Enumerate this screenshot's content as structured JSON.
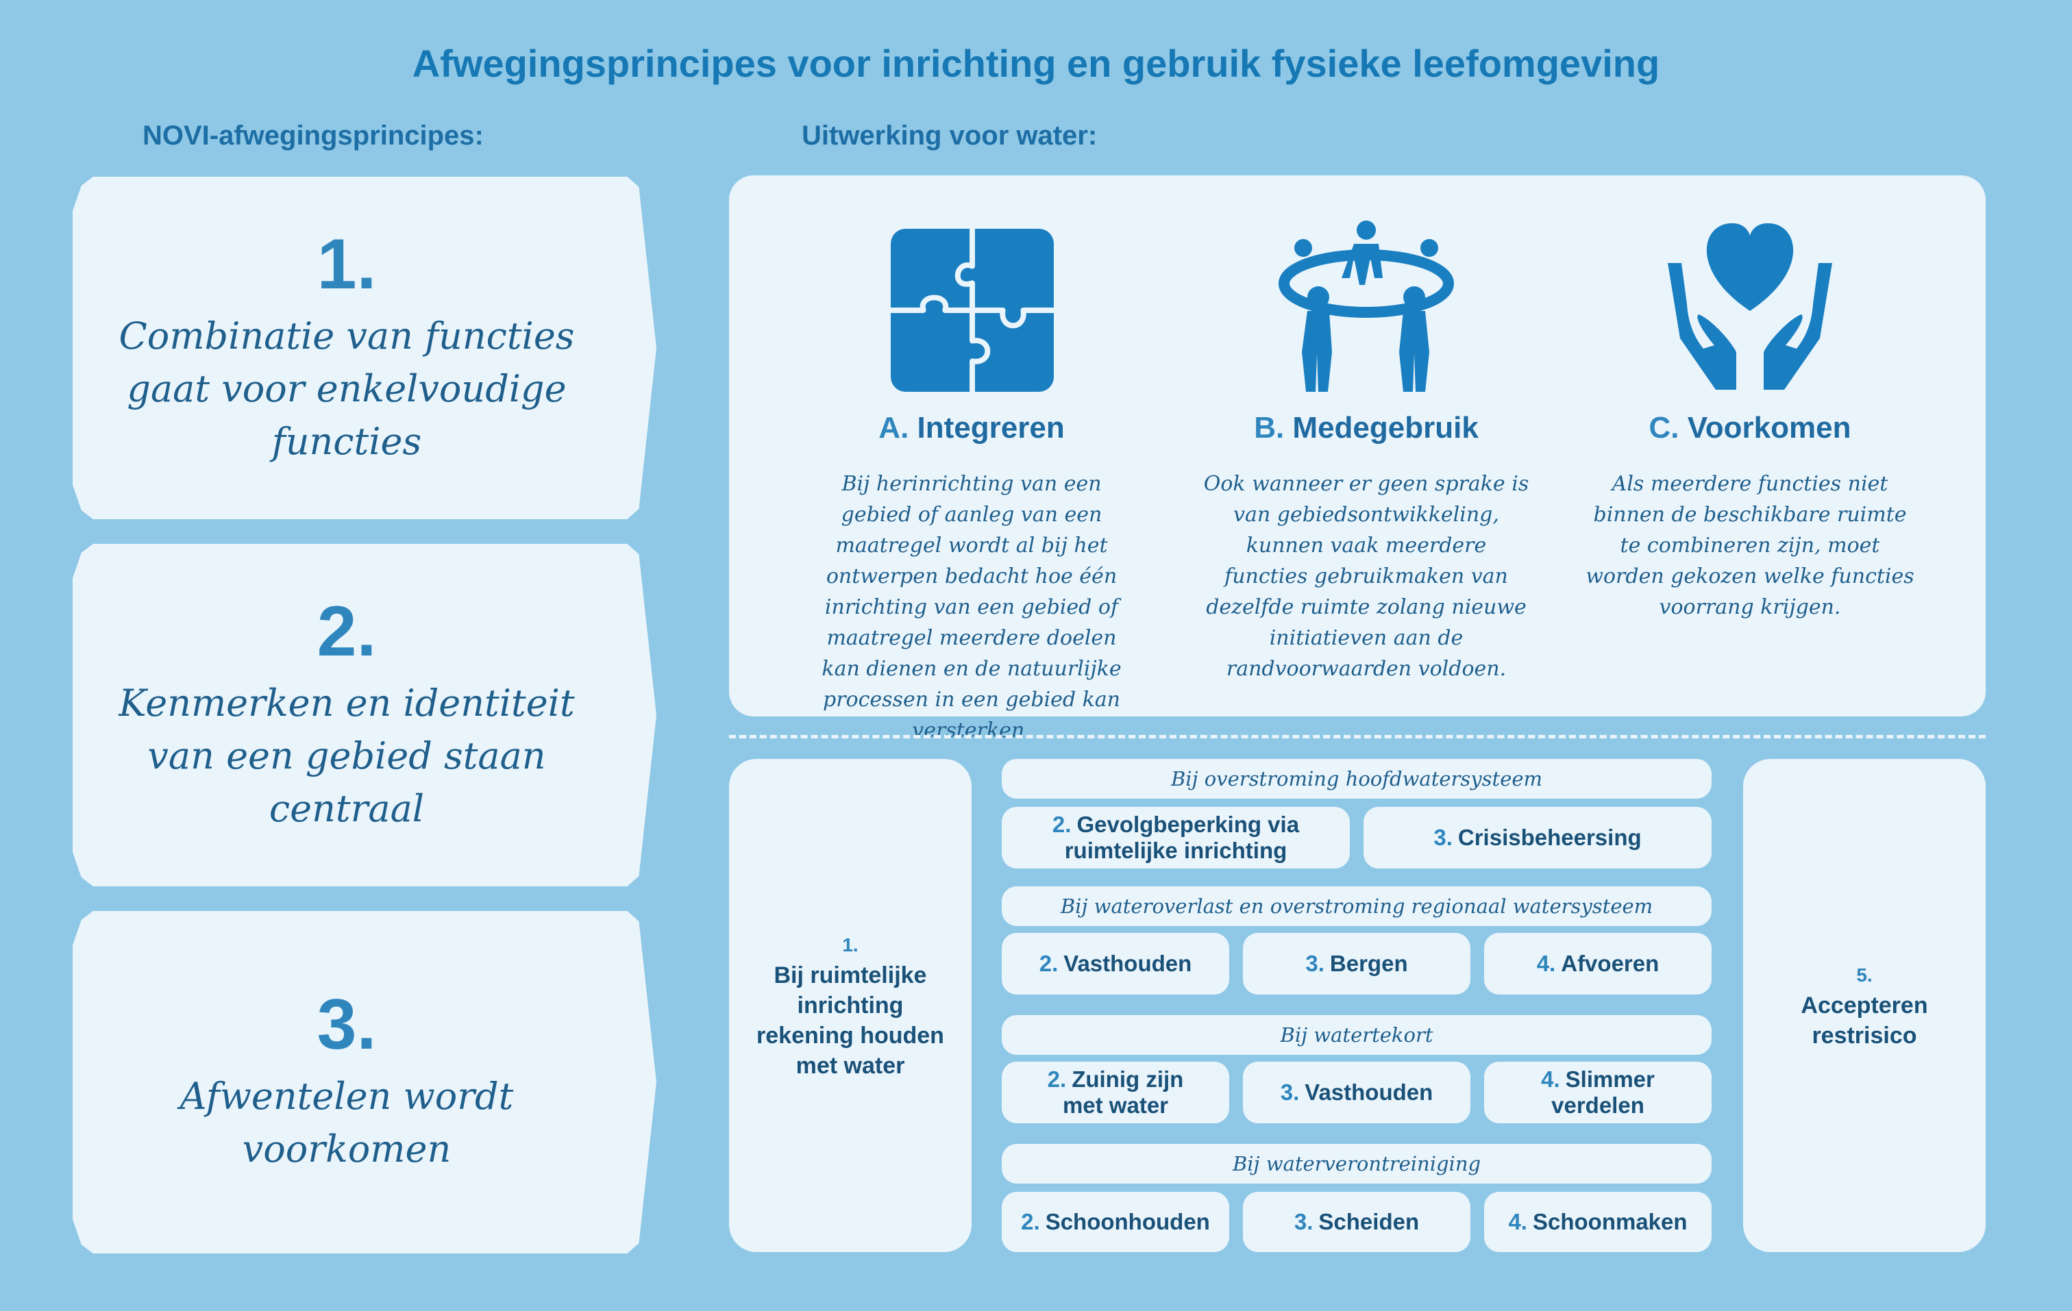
{
  "title": "Afwegingsprincipes voor inrichting en gebruik fysieke leefomgeving",
  "left_heading": "NOVI-afwegingsprincipes:",
  "right_heading": "Uitwerking voor water:",
  "novi": [
    {
      "number": "1.",
      "text": "Combinatie van functies\ngaat voor enkelvoudige\nfuncties"
    },
    {
      "number": "2.",
      "text": "Kenmerken en identiteit\nvan een gebied staan\ncentraal"
    },
    {
      "number": "3.",
      "text": "Afwentelen wordt\nvoorkomen"
    }
  ],
  "principles": [
    {
      "letter": "A.",
      "name": "Integreren",
      "icon": "puzzle-icon",
      "desc": "Bij herinrichting van een gebied of aanleg van een maatregel wordt al bij het ontwerpen bedacht hoe één inrichting van een gebied of maatregel meerdere doelen kan dienen en de natuurlijke processen in een gebied kan versterken."
    },
    {
      "letter": "B.",
      "name": "Medegebruik",
      "icon": "people-circle-icon",
      "desc": "Ook wanneer er geen sprake is van gebiedsontwikkeling, kunnen vaak meerdere functies gebruikmaken van dezelfde ruimte zolang nieuwe initiatieven aan de randvoorwaarden voldoen."
    },
    {
      "letter": "C.",
      "name": "Voorkomen",
      "icon": "heart-hands-icon",
      "desc": "Als meerdere functies niet binnen de beschikbare ruimte te combineren zijn, moet worden gekozen welke functies voorrang krijgen."
    }
  ],
  "steps": {
    "left": {
      "number": "1.",
      "text": "Bij  ruimtelijke\ninrichting\nrekening houden\nmet water"
    },
    "right": {
      "number": "5.",
      "text": "Accepteren\nrestrisico"
    },
    "groups": [
      {
        "header": "Bij overstroming hoofdwatersysteem",
        "items": [
          {
            "n": "2.",
            "label": "Gevolgbeperking via",
            "label2": "ruimtelijke inrichting"
          },
          {
            "n": "3.",
            "label": "Crisisbeheersing",
            "label2": ""
          }
        ]
      },
      {
        "header": "Bij wateroverlast en overstroming regionaal watersysteem",
        "items": [
          {
            "n": "2.",
            "label": "Vasthouden",
            "label2": ""
          },
          {
            "n": "3.",
            "label": "Bergen",
            "label2": ""
          },
          {
            "n": "4.",
            "label": "Afvoeren",
            "label2": ""
          }
        ]
      },
      {
        "header": "Bij watertekort",
        "items": [
          {
            "n": "2.",
            "label": "Zuinig zijn",
            "label2": "met water"
          },
          {
            "n": "3.",
            "label": "Vasthouden",
            "label2": ""
          },
          {
            "n": "4.",
            "label": "Slimmer",
            "label2": "verdelen"
          }
        ]
      },
      {
        "header": "Bij waterverontreiniging",
        "items": [
          {
            "n": "2.",
            "label": "Schoonhouden",
            "label2": ""
          },
          {
            "n": "3.",
            "label": "Scheiden",
            "label2": ""
          },
          {
            "n": "4.",
            "label": "Schoonmaken",
            "label2": ""
          }
        ]
      }
    ]
  },
  "colors": {
    "background": "#8fc8e6",
    "card": "#eaf4fb",
    "accent": "#1678b4",
    "icon": "#1a7fc1"
  }
}
